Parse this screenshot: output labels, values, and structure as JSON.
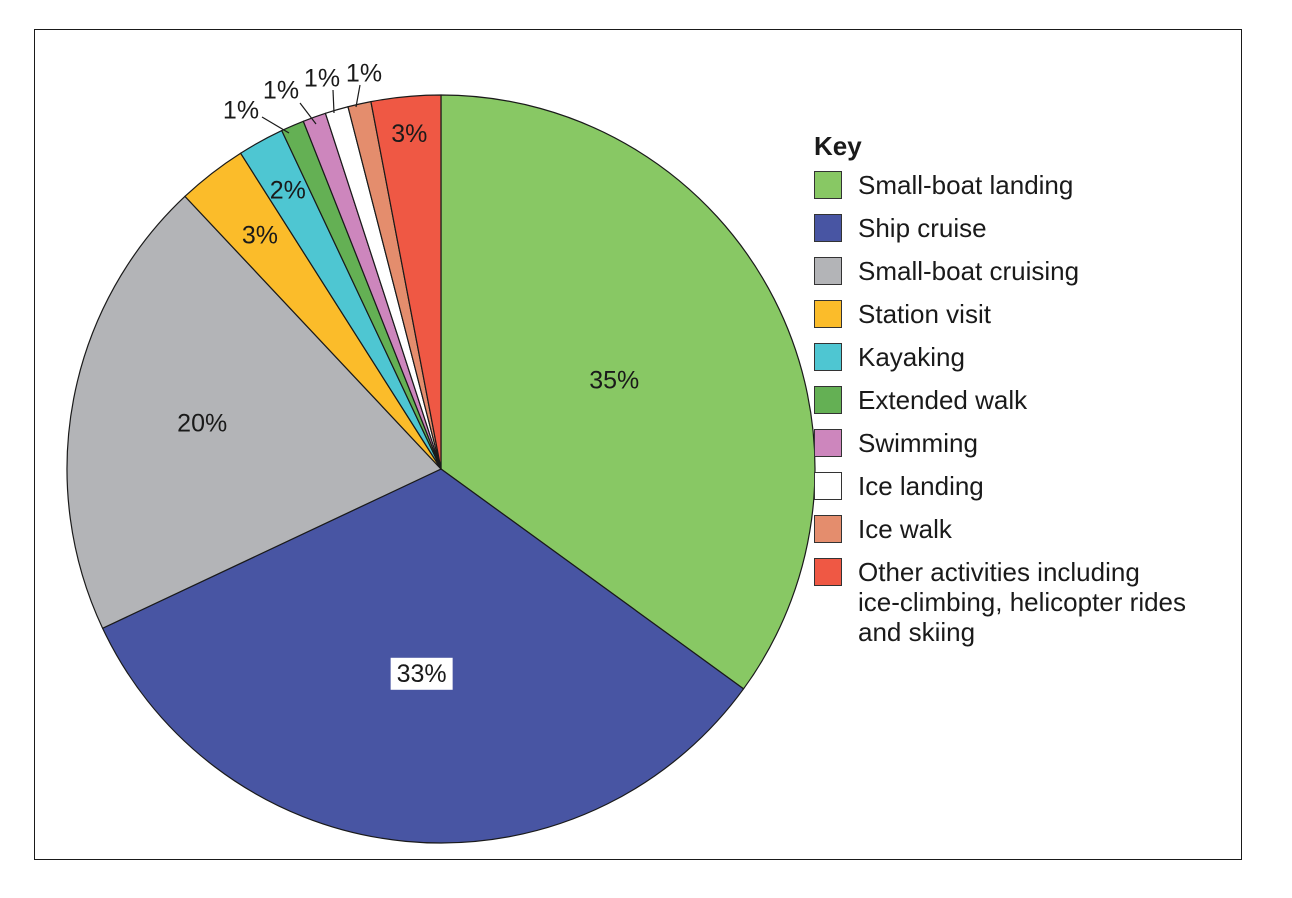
{
  "chart_data": {
    "type": "pie",
    "legend_title": "Key",
    "legend_position": "right",
    "slices": [
      {
        "name": "Small-boat landing",
        "value": 35,
        "label": "35%",
        "color": "#88c864"
      },
      {
        "name": "Ship cruise",
        "value": 33,
        "label": "33%",
        "color": "#4855a3"
      },
      {
        "name": "Small-boat cruising",
        "value": 20,
        "label": "20%",
        "color": "#b3b4b7"
      },
      {
        "name": "Station visit",
        "value": 3,
        "label": "3%",
        "color": "#fbbc2a"
      },
      {
        "name": "Kayaking",
        "value": 2,
        "label": "2%",
        "color": "#4ec6d2"
      },
      {
        "name": "Extended walk",
        "value": 1,
        "label": "1%",
        "color": "#64b054"
      },
      {
        "name": "Swimming",
        "value": 1,
        "label": "1%",
        "color": "#cd86bd"
      },
      {
        "name": "Ice landing",
        "value": 1,
        "label": "1%",
        "color": "#ffffff"
      },
      {
        "name": "Ice walk",
        "value": 1,
        "label": "1%",
        "color": "#e48d6d"
      },
      {
        "name": "Other activities including ice-climbing, helicopter rides and skiing",
        "value": 3,
        "label": "3%",
        "color": "#ef5844"
      }
    ]
  }
}
